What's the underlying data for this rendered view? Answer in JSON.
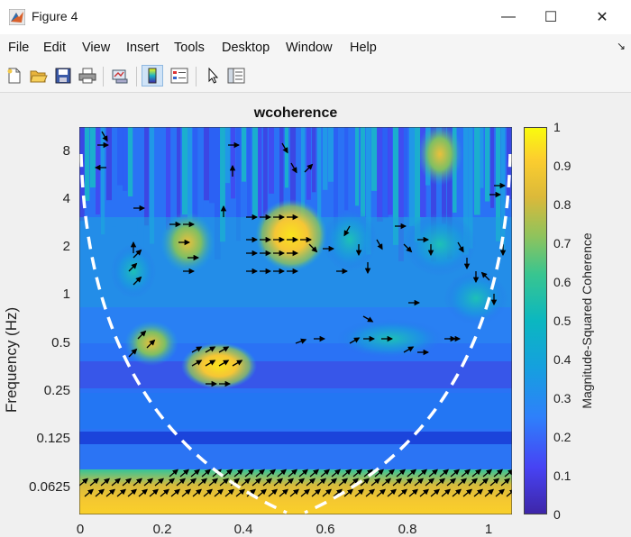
{
  "window": {
    "title": "Figure 4",
    "minimize_glyph": "—",
    "maximize_glyph": "☐",
    "close_glyph": "✕"
  },
  "menu": [
    "File",
    "Edit",
    "View",
    "Insert",
    "Tools",
    "Desktop",
    "Window",
    "Help"
  ],
  "menu_dock_glyph": "↘",
  "toolbar": {
    "icons": [
      "new-figure-icon",
      "open-file-icon",
      "save-icon",
      "print-icon",
      "link-plot-icon",
      "colorbar-icon",
      "legend-icon",
      "pointer-icon",
      "property-inspector-icon"
    ]
  },
  "chart_data": {
    "type": "heatmap",
    "title": "wcoherence",
    "xlabel": "",
    "ylabel": "Frequency (Hz)",
    "y_scale": "log2",
    "x_ticks": [
      "0",
      "0.2",
      "0.4",
      "0.6",
      "0.8",
      "1"
    ],
    "y_ticks": [
      "8",
      "4",
      "2",
      "1",
      "0.5",
      "0.25",
      "0.125",
      "0.0625"
    ],
    "xlim": [
      0,
      1.05
    ],
    "colorbar": {
      "label": "Magnitude-Squared Coherence",
      "ticks": [
        "0",
        "0.1",
        "0.2",
        "0.3",
        "0.4",
        "0.5",
        "0.6",
        "0.7",
        "0.8",
        "0.9",
        "1"
      ],
      "range": [
        0,
        1
      ],
      "colormap": "parula"
    },
    "cone_of_influence": "white dashed line",
    "high_coherence_regions": [
      {
        "x": 0.5,
        "freq_hz": 2.0,
        "value": 0.9
      },
      {
        "x": 0.27,
        "freq_hz": 2.0,
        "value": 0.85
      },
      {
        "x": 0.35,
        "freq_hz": 0.35,
        "value": 0.8
      },
      {
        "x": 0.5,
        "freq_hz": 0.05,
        "value": 0.85
      }
    ]
  }
}
